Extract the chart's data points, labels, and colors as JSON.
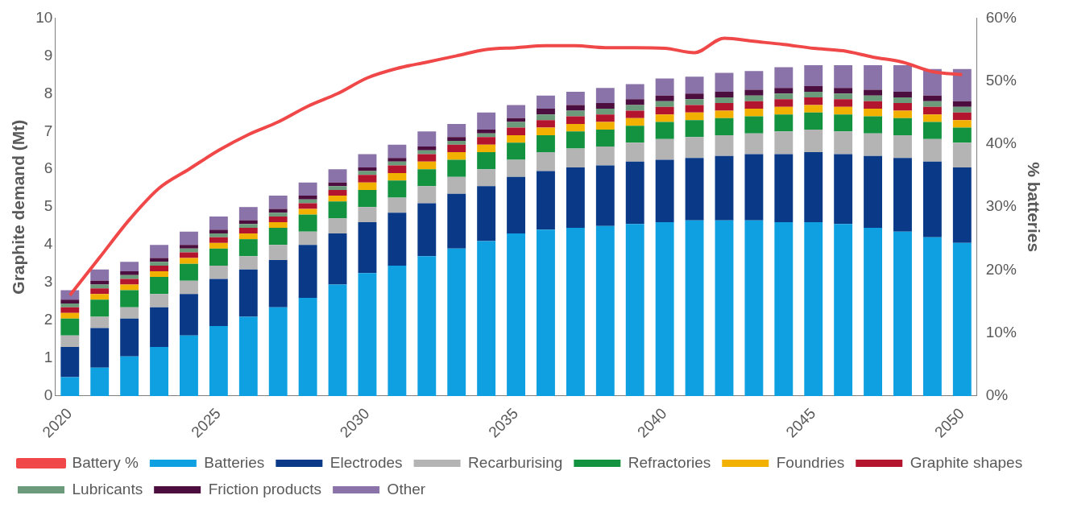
{
  "chart_data": {
    "type": "bar",
    "stacked": true,
    "ylabel": "Graphite demand (Mt)",
    "y2label": "% batteries",
    "categories": [
      "2020",
      null,
      null,
      null,
      null,
      "2025",
      null,
      null,
      null,
      null,
      "2030",
      null,
      null,
      null,
      null,
      "2035",
      null,
      null,
      null,
      null,
      "2040",
      null,
      null,
      null,
      null,
      "2045",
      null,
      null,
      null,
      null,
      "2050"
    ],
    "ylim": [
      0,
      10
    ],
    "yticks": [
      0,
      1,
      2,
      3,
      4,
      5,
      6,
      7,
      8,
      9,
      10
    ],
    "y2lim": [
      0,
      60
    ],
    "y2ticks": [
      {
        "value": 0,
        "label": "0%"
      },
      {
        "value": 10,
        "label": "10%"
      },
      {
        "value": 20,
        "label": "20%"
      },
      {
        "value": 30,
        "label": "30%"
      },
      {
        "value": 40,
        "label": "40%"
      },
      {
        "value": 50,
        "label": "50%"
      },
      {
        "value": 60,
        "label": "60%"
      }
    ],
    "grid": false,
    "legend": "bottom",
    "series": [
      {
        "name": "Batteries",
        "color": "#0ea0e0",
        "values": [
          0.5,
          0.75,
          1.05,
          1.3,
          1.6,
          1.85,
          2.1,
          2.35,
          2.6,
          2.95,
          3.25,
          3.45,
          3.7,
          3.9,
          4.1,
          4.3,
          4.4,
          4.45,
          4.5,
          4.55,
          4.6,
          4.65,
          4.65,
          4.65,
          4.6,
          4.6,
          4.55,
          4.45,
          4.35,
          4.2,
          4.05
        ]
      },
      {
        "name": "Electrodes",
        "color": "#0a3a87",
        "values": [
          0.8,
          1.05,
          1.0,
          1.05,
          1.1,
          1.25,
          1.25,
          1.25,
          1.4,
          1.35,
          1.35,
          1.4,
          1.4,
          1.45,
          1.45,
          1.5,
          1.55,
          1.6,
          1.6,
          1.65,
          1.65,
          1.65,
          1.7,
          1.75,
          1.8,
          1.85,
          1.85,
          1.9,
          1.95,
          2.0,
          2.0
        ]
      },
      {
        "name": "Recarburising",
        "color": "#b4b4b4",
        "values": [
          0.3,
          0.3,
          0.3,
          0.35,
          0.35,
          0.35,
          0.35,
          0.4,
          0.35,
          0.4,
          0.4,
          0.4,
          0.45,
          0.45,
          0.45,
          0.45,
          0.5,
          0.5,
          0.5,
          0.5,
          0.55,
          0.55,
          0.55,
          0.55,
          0.6,
          0.6,
          0.6,
          0.6,
          0.6,
          0.6,
          0.65
        ]
      },
      {
        "name": "Refractories",
        "color": "#13923f",
        "values": [
          0.45,
          0.45,
          0.45,
          0.45,
          0.45,
          0.45,
          0.45,
          0.45,
          0.45,
          0.45,
          0.45,
          0.45,
          0.45,
          0.45,
          0.45,
          0.45,
          0.45,
          0.45,
          0.45,
          0.45,
          0.45,
          0.45,
          0.45,
          0.45,
          0.45,
          0.45,
          0.45,
          0.45,
          0.45,
          0.45,
          0.4
        ]
      },
      {
        "name": "Foundries",
        "color": "#f2b000",
        "values": [
          0.15,
          0.15,
          0.15,
          0.15,
          0.15,
          0.15,
          0.15,
          0.15,
          0.15,
          0.15,
          0.2,
          0.2,
          0.2,
          0.2,
          0.2,
          0.2,
          0.2,
          0.2,
          0.2,
          0.2,
          0.2,
          0.2,
          0.2,
          0.2,
          0.2,
          0.2,
          0.2,
          0.2,
          0.2,
          0.2,
          0.2
        ]
      },
      {
        "name": "Graphite shapes",
        "color": "#b3152e",
        "values": [
          0.15,
          0.15,
          0.15,
          0.15,
          0.15,
          0.15,
          0.15,
          0.15,
          0.15,
          0.15,
          0.2,
          0.2,
          0.2,
          0.2,
          0.2,
          0.2,
          0.2,
          0.2,
          0.2,
          0.2,
          0.2,
          0.2,
          0.2,
          0.2,
          0.2,
          0.2,
          0.2,
          0.2,
          0.2,
          0.2,
          0.2
        ]
      },
      {
        "name": "Lubricants",
        "color": "#6b9b7a",
        "values": [
          0.1,
          0.1,
          0.1,
          0.1,
          0.1,
          0.1,
          0.1,
          0.1,
          0.1,
          0.1,
          0.1,
          0.1,
          0.1,
          0.1,
          0.1,
          0.15,
          0.15,
          0.15,
          0.15,
          0.15,
          0.15,
          0.15,
          0.15,
          0.15,
          0.15,
          0.15,
          0.15,
          0.15,
          0.15,
          0.15,
          0.15
        ]
      },
      {
        "name": "Friction products",
        "color": "#4b0e3f",
        "values": [
          0.1,
          0.1,
          0.1,
          0.1,
          0.1,
          0.1,
          0.1,
          0.1,
          0.1,
          0.1,
          0.1,
          0.1,
          0.1,
          0.1,
          0.1,
          0.1,
          0.15,
          0.15,
          0.15,
          0.15,
          0.15,
          0.15,
          0.15,
          0.15,
          0.15,
          0.15,
          0.15,
          0.15,
          0.15,
          0.15,
          0.15
        ]
      },
      {
        "name": "Other",
        "color": "#8a73a8",
        "values": [
          0.25,
          0.3,
          0.25,
          0.35,
          0.35,
          0.35,
          0.35,
          0.35,
          0.35,
          0.35,
          0.35,
          0.35,
          0.4,
          0.35,
          0.45,
          0.35,
          0.35,
          0.35,
          0.4,
          0.4,
          0.45,
          0.45,
          0.5,
          0.5,
          0.55,
          0.55,
          0.6,
          0.65,
          0.7,
          0.7,
          0.85
        ]
      },
      {
        "name": "Battery %",
        "type": "line",
        "axis": "y2",
        "color": "#f04848",
        "marker": "none",
        "values": [
          16,
          22,
          28,
          33,
          36,
          39,
          41.5,
          43.5,
          46,
          48,
          50.5,
          52,
          53,
          54,
          55,
          55.3,
          55.6,
          55.6,
          55.3,
          55.3,
          55.2,
          54.5,
          56.8,
          56.3,
          55.8,
          55.2,
          54.8,
          53.8,
          53,
          51.5,
          51
        ]
      }
    ]
  }
}
